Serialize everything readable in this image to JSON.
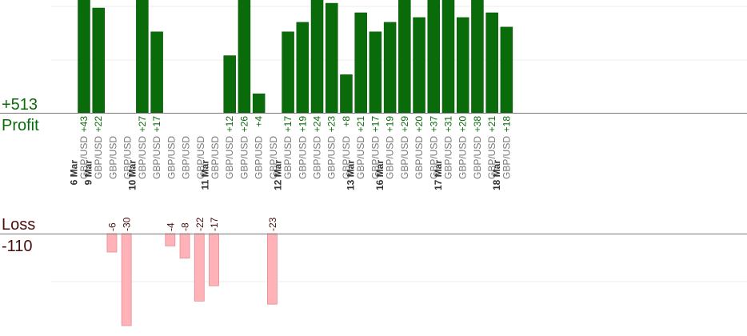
{
  "summary": {
    "profit_total": "+513",
    "profit_label": "Profit",
    "loss_label": "Loss",
    "loss_total": "-110"
  },
  "colors": {
    "profit": "#0a6b0a",
    "profit_dark": "#075007",
    "loss": "#ffb3b8",
    "loss_edge": "#e58a90",
    "axis": "#7a7a7a",
    "grid": "#ececec",
    "pair_text": "#777777",
    "date_text": "#333333",
    "loss_text": "#4a0e0e"
  },
  "chart_data": {
    "type": "bar",
    "columns": [
      {
        "date": "6 Mar",
        "pair": "GBP/USD",
        "value": 43
      },
      {
        "date": "9 Mar",
        "pair": "GBP/USD",
        "value": 22
      },
      {
        "date": "",
        "pair": "GBP/USD",
        "value": -6
      },
      {
        "date": "",
        "pair": "GBP/USD",
        "value": -30
      },
      {
        "date": "10 Mar",
        "pair": "GBP/USD",
        "value": 27
      },
      {
        "date": "",
        "pair": "GBP/USD",
        "value": 17
      },
      {
        "date": "",
        "pair": "GBP/USD",
        "value": -4
      },
      {
        "date": "",
        "pair": "GBP/USD",
        "value": -8
      },
      {
        "date": "",
        "pair": "GBP/USD",
        "value": -22
      },
      {
        "date": "11 Mar",
        "pair": "GBP/USD",
        "value": -17
      },
      {
        "date": "",
        "pair": "GBP/USD",
        "value": 12
      },
      {
        "date": "",
        "pair": "GBP/USD",
        "value": 26
      },
      {
        "date": "",
        "pair": "GBP/USD",
        "value": 4
      },
      {
        "date": "",
        "pair": "GBP/USD",
        "value": -23
      },
      {
        "date": "12 Mar",
        "pair": "GBP/USD",
        "value": 17
      },
      {
        "date": "",
        "pair": "GBP/USD",
        "value": 19
      },
      {
        "date": "",
        "pair": "GBP/USD",
        "value": 24
      },
      {
        "date": "",
        "pair": "GBP/USD",
        "value": 23
      },
      {
        "date": "",
        "pair": "GBP/USD",
        "value": 8
      },
      {
        "date": "13 Mar",
        "pair": "GBP/USD",
        "value": 21
      },
      {
        "date": "",
        "pair": "GBP/USD",
        "value": 17
      },
      {
        "date": "16 Mar",
        "pair": "GBP/USD",
        "value": 19
      },
      {
        "date": "",
        "pair": "GBP/USD",
        "value": 29
      },
      {
        "date": "",
        "pair": "GBP/USD",
        "value": 20
      },
      {
        "date": "",
        "pair": "GBP/USD",
        "value": 37
      },
      {
        "date": "17 Mar",
        "pair": "GBP/USD",
        "value": 31
      },
      {
        "date": "",
        "pair": "GBP/USD",
        "value": 20
      },
      {
        "date": "",
        "pair": "GBP/USD",
        "value": 38
      },
      {
        "date": "",
        "pair": "GBP/USD",
        "value": 21
      },
      {
        "date": "18 Mar",
        "pair": "GBP/USD",
        "value": 18
      }
    ],
    "profit_ylim": [
      0,
      22
    ],
    "loss_ylim": [
      0,
      30
    ],
    "grid": true
  }
}
